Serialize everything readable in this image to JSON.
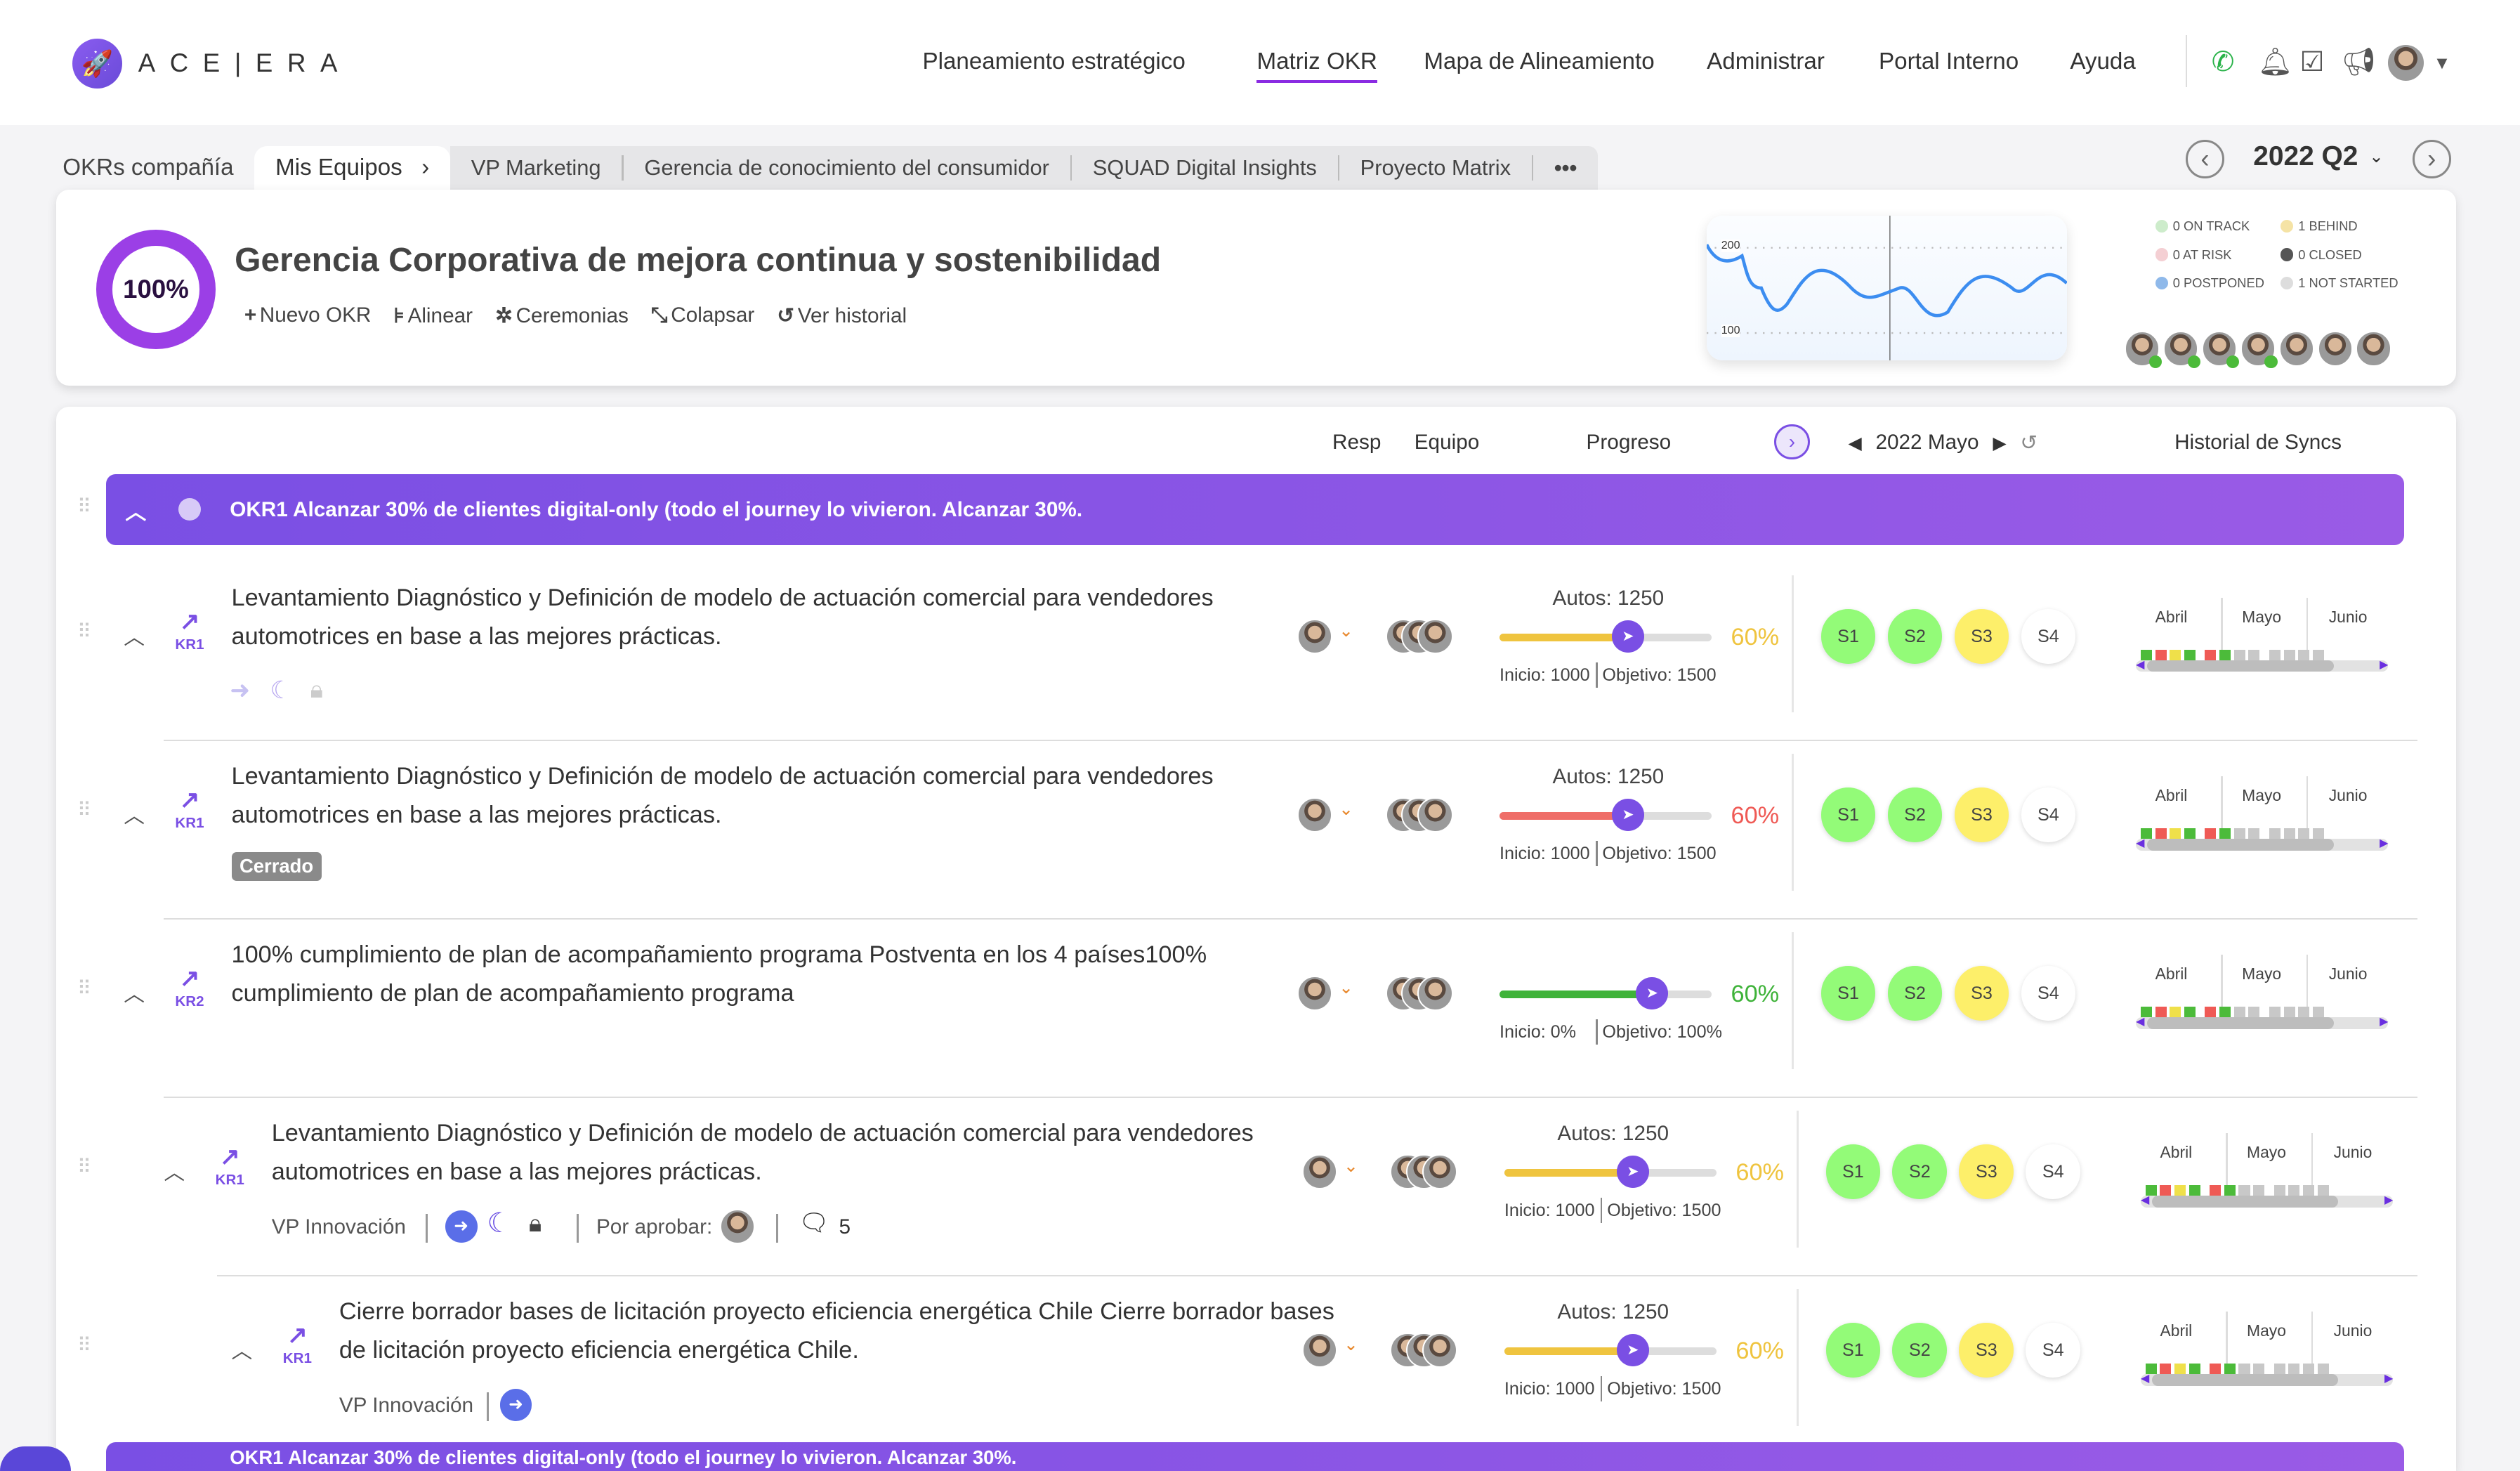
{
  "app": {
    "logo": "ACE|ERA"
  },
  "nav": [
    "Planeamiento estratégico",
    "Matriz OKR",
    "Mapa de Alineamiento",
    "Administrar",
    "Portal Interno",
    "Ayuda"
  ],
  "nav_active": "Matriz OKR",
  "tabs": {
    "company": "OKRs compañía",
    "selected": "Mis Equipos",
    "items": [
      "VP Marketing",
      "Gerencia de conocimiento del consumidor",
      "SQUAD Digital Insights",
      "Proyecto Matrix"
    ],
    "more": "•••"
  },
  "period": "2022 Q2",
  "summary": {
    "progress": "100%",
    "progress_value": 100,
    "title": "Gerencia Corporativa de mejora continua y sostenibilidad",
    "actions": [
      {
        "icon": "plus-icon",
        "glyph": "+",
        "label": "Nuevo OKR"
      },
      {
        "icon": "align-icon",
        "glyph": "⊧",
        "label": "Alinear"
      },
      {
        "icon": "ceremony-icon",
        "glyph": "✲",
        "label": "Ceremonias"
      },
      {
        "icon": "collapse-icon",
        "glyph": "⤡",
        "label": "Colapsar"
      },
      {
        "icon": "history-icon",
        "glyph": "↺",
        "label": "Ver historial"
      }
    ],
    "chart": {
      "ticks": [
        "200",
        "100"
      ]
    },
    "legend": [
      {
        "label": "0 ON TRACK",
        "color": "#cdeccb"
      },
      {
        "label": "1 BEHIND",
        "color": "#f5e3a5"
      },
      {
        "label": "0 AT RISK",
        "color": "#f4cfd3"
      },
      {
        "label": "0 CLOSED",
        "color": "#555555"
      },
      {
        "label": "0 POSTPONED",
        "color": "#8fb9ea"
      },
      {
        "label": "1 NOT STARTED",
        "color": "#dddddd"
      }
    ]
  },
  "columns": {
    "resp": "Resp",
    "team": "Equipo",
    "progress": "Progreso",
    "month": "2022 Mayo",
    "history": "Historial de Syncs"
  },
  "okr_banner": "OKR1 Alcanzar 30% de clientes digital-only (todo el journey lo vivieron. Alcanzar 30%.",
  "okr_banner2": "OKR1 Alcanzar 30% de clientes digital-only (todo el journey lo vivieron. Alcanzar 30%.",
  "months": [
    "Abril",
    "Mayo",
    "Junio"
  ],
  "syncs": [
    "S1",
    "S2",
    "S3",
    "S4"
  ],
  "rows": [
    {
      "kr": "KR1",
      "title": "Levantamiento Diagnóstico  y Definición de modelo de actuación comercial para vendedores automotrices en base a las mejores prácticas.",
      "metric": "Autos: 1250",
      "start": "Inicio: 1000",
      "target": "Objetivo: 1500",
      "pct": "60%",
      "pct_color": "#efc43f",
      "bar_color": "#efc43f",
      "extra": "icons"
    },
    {
      "kr": "KR1",
      "title": "Levantamiento Diagnóstico  y Definición de modelo de actuación comercial para vendedores automotrices en base a las mejores prácticas.",
      "metric": "Autos: 1250",
      "start": "Inicio: 1000",
      "target": "Objetivo: 1500",
      "pct": "60%",
      "pct_color": "#ef5a55",
      "bar_color": "#ef6e68",
      "extra": "closed",
      "badge": "Cerrado"
    },
    {
      "kr": "KR2",
      "title": "100% cumplimiento de plan de acompañamiento programa Postventa en los 4 países100% cumplimiento de plan de acompañamiento programa",
      "metric": "",
      "start": "Inicio: 0%",
      "target": "Objetivo: 100%",
      "pct": "60%",
      "pct_color": "#3fb33a",
      "bar_color": "#3fb33a",
      "extra": ""
    },
    {
      "kr": "KR1",
      "title": "Levantamiento Diagnóstico  y Definición de modelo de actuación comercial para vendedores automotrices en base a las mejores prácticas.",
      "metric": "Autos: 1250",
      "start": "Inicio: 1000",
      "target": "Objetivo: 1500",
      "pct": "60%",
      "pct_color": "#efc43f",
      "bar_color": "#efc43f",
      "extra": "meta",
      "team": "VP Innovación",
      "approve": "Por aprobar:",
      "comments": "5"
    },
    {
      "kr": "KR1",
      "title": "Cierre borrador bases de licitación proyecto eficiencia energética Chile Cierre borrador bases de licitación proyecto eficiencia energética Chile.",
      "metric": "Autos: 1250",
      "start": "Inicio: 1000",
      "target": "Objetivo: 1500",
      "pct": "60%",
      "pct_color": "#efc43f",
      "bar_color": "#efc43f",
      "extra": "team",
      "team": "VP Innovación"
    }
  ],
  "colors": {
    "accent": "#7a4fe4",
    "s_green": "#93fb78",
    "s_yellow": "#fdef6a"
  }
}
